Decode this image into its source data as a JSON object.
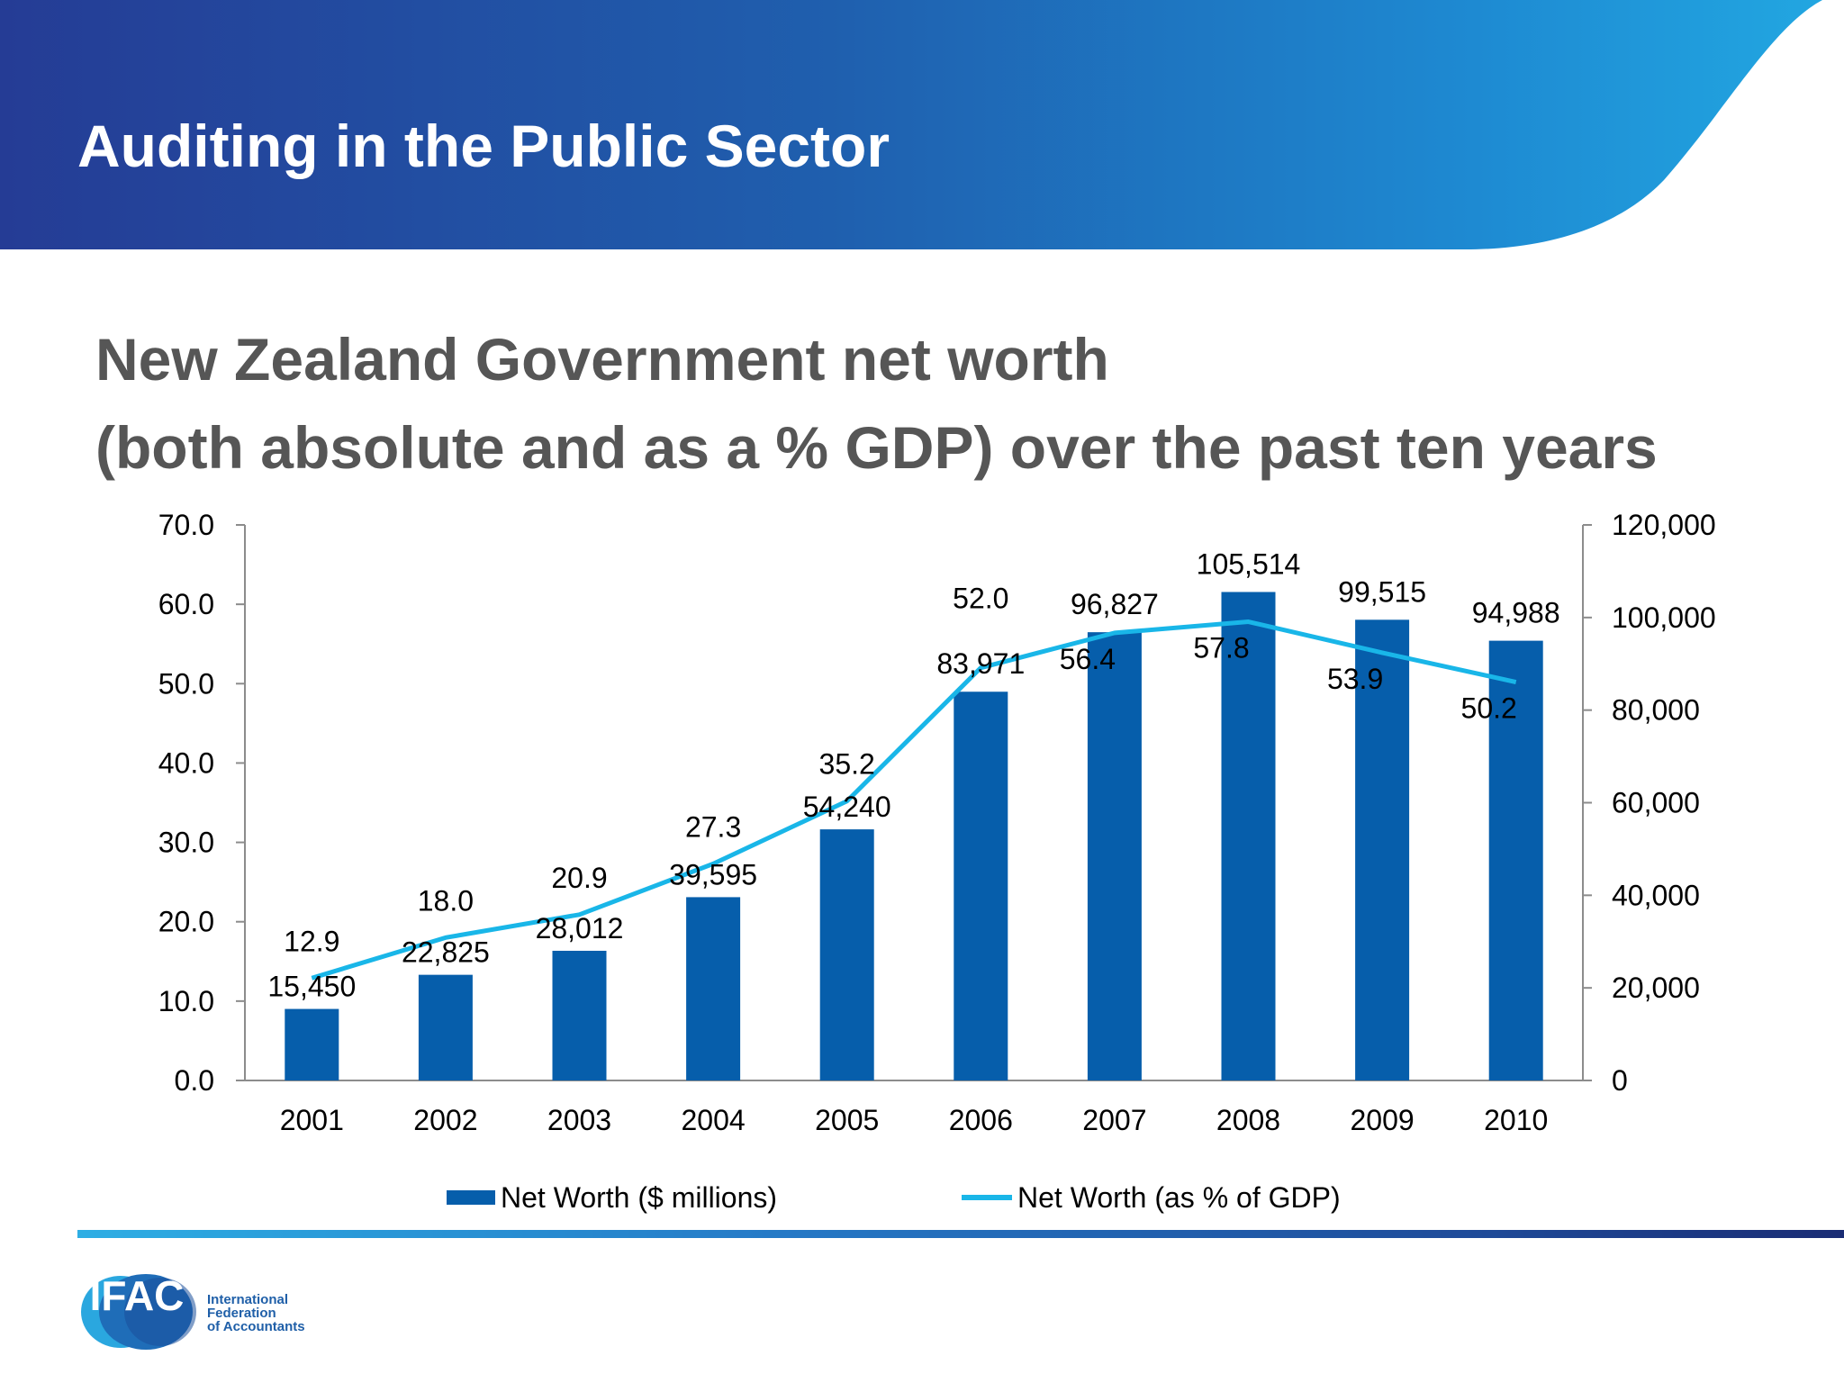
{
  "header": {
    "title": "Auditing in the Public Sector",
    "colors": {
      "gradient_start": "#253c95",
      "gradient_end": "#22a8e2"
    }
  },
  "heading": {
    "line1": "New Zealand Government net worth",
    "line2": "(both absolute and as a % GDP) over the past ten years"
  },
  "chart_data": {
    "type": "bar",
    "categories": [
      "2001",
      "2002",
      "2003",
      "2004",
      "2005",
      "2006",
      "2007",
      "2008",
      "2009",
      "2010"
    ],
    "series": [
      {
        "name": "Net Worth ($ millions)",
        "type": "bar",
        "axis": "right",
        "color": "#065eab",
        "values": [
          15450,
          22825,
          28012,
          39595,
          54240,
          83971,
          96827,
          105514,
          99515,
          94988
        ],
        "labels": [
          "15,450",
          "22,825",
          "28,012",
          "39,595",
          "54,240",
          "83,971",
          "96,827",
          "105,514",
          "99,515",
          "94,988"
        ]
      },
      {
        "name": "Net Worth (as % of GDP)",
        "type": "line",
        "axis": "left",
        "color": "#19b6e8",
        "values": [
          12.9,
          18.0,
          20.9,
          27.3,
          35.2,
          52.0,
          56.4,
          57.8,
          53.9,
          50.2
        ],
        "labels": [
          "12.9",
          "18.0",
          "20.9",
          "27.3",
          "35.2",
          "52.0",
          "56.4",
          "57.8",
          "53.9",
          "50.2"
        ]
      }
    ],
    "y_left": {
      "range": [
        0,
        70
      ],
      "ticks": [
        0,
        10,
        20,
        30,
        40,
        50,
        60,
        70
      ],
      "tick_labels": [
        "0.0",
        "10.0",
        "20.0",
        "30.0",
        "40.0",
        "50.0",
        "60.0",
        "70.0"
      ]
    },
    "y_right": {
      "range": [
        0,
        120000
      ],
      "ticks": [
        0,
        20000,
        40000,
        60000,
        80000,
        100000,
        120000
      ],
      "tick_labels": [
        "0",
        "20,000",
        "40,000",
        "60,000",
        "80,000",
        "100,000",
        "120,000"
      ]
    },
    "grid": false,
    "legend_position": "bottom"
  },
  "footer": {
    "logo_abbr": "IFAC",
    "logo_lines": [
      "International",
      "Federation",
      "of Accountants"
    ]
  }
}
